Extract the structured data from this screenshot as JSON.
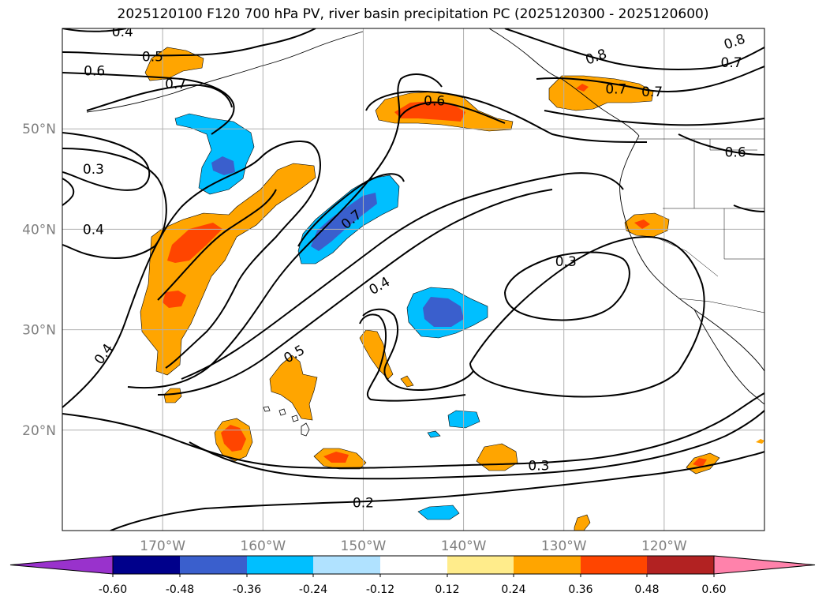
{
  "title": "2025120100 F120 700 hPa PV, river basin precipitation PC (2025120300 - 2025120600)",
  "map": {
    "lon_range": [
      -180,
      -110
    ],
    "lat_range": [
      10,
      60
    ],
    "lat_ticks": [
      {
        "value": 20,
        "label": "20°N"
      },
      {
        "value": 30,
        "label": "30°N"
      },
      {
        "value": 40,
        "label": "40°N"
      },
      {
        "value": 50,
        "label": "50°N"
      }
    ],
    "lon_ticks": [
      {
        "value": -170,
        "label": "170°W"
      },
      {
        "value": -160,
        "label": "160°W"
      },
      {
        "value": -150,
        "label": "150°W"
      },
      {
        "value": -140,
        "label": "140°W"
      },
      {
        "value": -130,
        "label": "130°W"
      },
      {
        "value": -120,
        "label": "120°W"
      }
    ],
    "contour_labels": [
      {
        "text": "0.4",
        "lon": -174.0,
        "lat": 59.7,
        "rot": 0
      },
      {
        "text": "0.5",
        "lon": -171.0,
        "lat": 57.2,
        "rot": 0
      },
      {
        "text": "0.6",
        "lon": -176.8,
        "lat": 55.8,
        "rot": 0
      },
      {
        "text": "0.7",
        "lon": -168.7,
        "lat": 54.5,
        "rot": 0
      },
      {
        "text": "0.3",
        "lon": -176.9,
        "lat": 46.0,
        "rot": 0
      },
      {
        "text": "0.4",
        "lon": -176.9,
        "lat": 40.0,
        "rot": 0
      },
      {
        "text": "0.4",
        "lon": -175.9,
        "lat": 27.6,
        "rot": -55
      },
      {
        "text": "0.5",
        "lon": -156.9,
        "lat": 27.6,
        "rot": -30
      },
      {
        "text": "0.4",
        "lon": -148.4,
        "lat": 34.4,
        "rot": -30
      },
      {
        "text": "0.7",
        "lon": -151.2,
        "lat": 41.0,
        "rot": -40
      },
      {
        "text": "0.6",
        "lon": -142.9,
        "lat": 52.8,
        "rot": 0
      },
      {
        "text": "0.3",
        "lon": -129.8,
        "lat": 36.8,
        "rot": 0
      },
      {
        "text": "0.3",
        "lon": -132.5,
        "lat": 16.5,
        "rot": 0
      },
      {
        "text": "0.2",
        "lon": -150.0,
        "lat": 12.8,
        "rot": 0
      },
      {
        "text": "0.8",
        "lon": -126.8,
        "lat": 57.2,
        "rot": -20
      },
      {
        "text": "0.8",
        "lon": -113.0,
        "lat": 58.7,
        "rot": -20
      },
      {
        "text": "0.7",
        "lon": -113.3,
        "lat": 56.6,
        "rot": 0
      },
      {
        "text": "0.7",
        "lon": -124.8,
        "lat": 54.0,
        "rot": 0
      },
      {
        "text": "0.7",
        "lon": -121.2,
        "lat": 53.7,
        "rot": 0
      },
      {
        "text": "0.6",
        "lon": -112.9,
        "lat": 47.7,
        "rot": 0
      }
    ]
  },
  "colorbar": {
    "ticks": [
      "-0.60",
      "-0.48",
      "-0.36",
      "-0.24",
      "-0.12",
      "0.12",
      "0.24",
      "0.36",
      "0.48",
      "0.60"
    ],
    "colors": [
      "#9932cc",
      "#00008b",
      "#3a5fcd",
      "#00bfff",
      "#b0e2ff",
      "#ffffff",
      "#ffec8b",
      "#ffa500",
      "#ff4500",
      "#b22222",
      "#ff82ab"
    ]
  },
  "fill_colors": {
    "orange": "#ffa500",
    "red_orange": "#ff4500",
    "deep_sky_blue": "#00bfff",
    "royal_blue": "#3a5fcd"
  }
}
